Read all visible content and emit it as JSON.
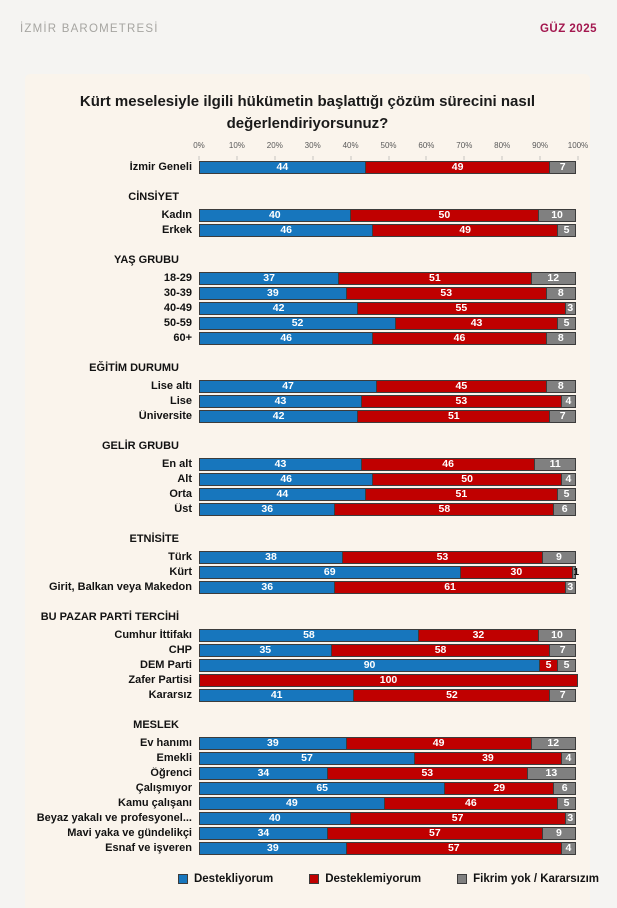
{
  "header": {
    "brand": "İZMİR BAROMETRESİ",
    "edition": "GÜZ 2025"
  },
  "colors": {
    "support": "#1776bd",
    "oppose": "#c00000",
    "undecided": "#808080",
    "bar_border": "#3c3c3c",
    "card_bg": "#faf4ec",
    "page_bg": "#f5f4f2",
    "edition_text": "#a3174f"
  },
  "chart_data": {
    "type": "bar",
    "variant": "horizontal-stacked",
    "title": "Kürt meselesiyle ilgili hükümetin başlattığı çözüm sürecini nasıl değerlendiriyorsunuz?",
    "xlabel": "",
    "ylabel": "",
    "xlim": [
      0,
      100
    ],
    "grid": false,
    "legend_position": "bottom",
    "x_ticks": [
      "0%",
      "10%",
      "20%",
      "30%",
      "40%",
      "50%",
      "60%",
      "70%",
      "80%",
      "90%",
      "100%"
    ],
    "series": [
      {
        "name": "Destekliyorum",
        "color": "#1776bd"
      },
      {
        "name": "Desteklemiyorum",
        "color": "#c00000"
      },
      {
        "name": "Fikrim yok / Kararsızım",
        "color": "#808080"
      }
    ],
    "groups": [
      {
        "header": "",
        "rows": [
          {
            "label": "İzmir Geneli",
            "values": [
              44,
              49,
              7
            ]
          }
        ]
      },
      {
        "header": "CİNSİYET",
        "rows": [
          {
            "label": "Kadın",
            "values": [
              40,
              50,
              10
            ]
          },
          {
            "label": "Erkek",
            "values": [
              46,
              49,
              5
            ]
          }
        ]
      },
      {
        "header": "YAŞ GRUBU",
        "rows": [
          {
            "label": "18-29",
            "values": [
              37,
              51,
              12
            ]
          },
          {
            "label": "30-39",
            "values": [
              39,
              53,
              8
            ]
          },
          {
            "label": "40-49",
            "values": [
              42,
              55,
              3
            ]
          },
          {
            "label": "50-59",
            "values": [
              52,
              43,
              5
            ]
          },
          {
            "label": "60+",
            "values": [
              46,
              46,
              8
            ]
          }
        ]
      },
      {
        "header": "EĞİTİM DURUMU",
        "rows": [
          {
            "label": "Lise altı",
            "values": [
              47,
              45,
              8
            ]
          },
          {
            "label": "Lise",
            "values": [
              43,
              53,
              4
            ]
          },
          {
            "label": "Üniversite",
            "values": [
              42,
              51,
              7
            ]
          }
        ]
      },
      {
        "header": "GELİR GRUBU",
        "rows": [
          {
            "label": "En alt",
            "values": [
              43,
              46,
              11
            ]
          },
          {
            "label": "Alt",
            "values": [
              46,
              50,
              4
            ]
          },
          {
            "label": "Orta",
            "values": [
              44,
              51,
              5
            ]
          },
          {
            "label": "Üst",
            "values": [
              36,
              58,
              6
            ]
          }
        ]
      },
      {
        "header": "ETNİSİTE",
        "rows": [
          {
            "label": "Türk",
            "values": [
              38,
              53,
              9
            ]
          },
          {
            "label": "Kürt",
            "values": [
              69,
              30,
              1
            ]
          },
          {
            "label": "Girit, Balkan veya Makedon",
            "values": [
              36,
              61,
              3
            ]
          }
        ]
      },
      {
        "header": "BU PAZAR PARTİ TERCİHİ",
        "rows": [
          {
            "label": "Cumhur İttifakı",
            "values": [
              58,
              32,
              10
            ]
          },
          {
            "label": "CHP",
            "values": [
              35,
              58,
              7
            ]
          },
          {
            "label": "DEM Parti",
            "values": [
              90,
              5,
              5
            ]
          },
          {
            "label": "Zafer Partisi",
            "values": [
              0,
              100,
              0
            ]
          },
          {
            "label": "Kararsız",
            "values": [
              41,
              52,
              7
            ]
          }
        ]
      },
      {
        "header": "MESLEK",
        "rows": [
          {
            "label": "Ev hanımı",
            "values": [
              39,
              49,
              12
            ]
          },
          {
            "label": "Emekli",
            "values": [
              57,
              39,
              4
            ]
          },
          {
            "label": "Öğrenci",
            "values": [
              34,
              53,
              13
            ]
          },
          {
            "label": "Çalışmıyor",
            "values": [
              65,
              29,
              6
            ]
          },
          {
            "label": "Kamu çalışanı",
            "values": [
              49,
              46,
              5
            ]
          },
          {
            "label": "Beyaz yakalı ve profesyonel...",
            "values": [
              40,
              57,
              3
            ]
          },
          {
            "label": "Mavi yaka ve gündelikçi",
            "values": [
              34,
              57,
              9
            ]
          },
          {
            "label": "Esnaf ve işveren",
            "values": [
              39,
              57,
              4
            ]
          }
        ]
      }
    ]
  }
}
